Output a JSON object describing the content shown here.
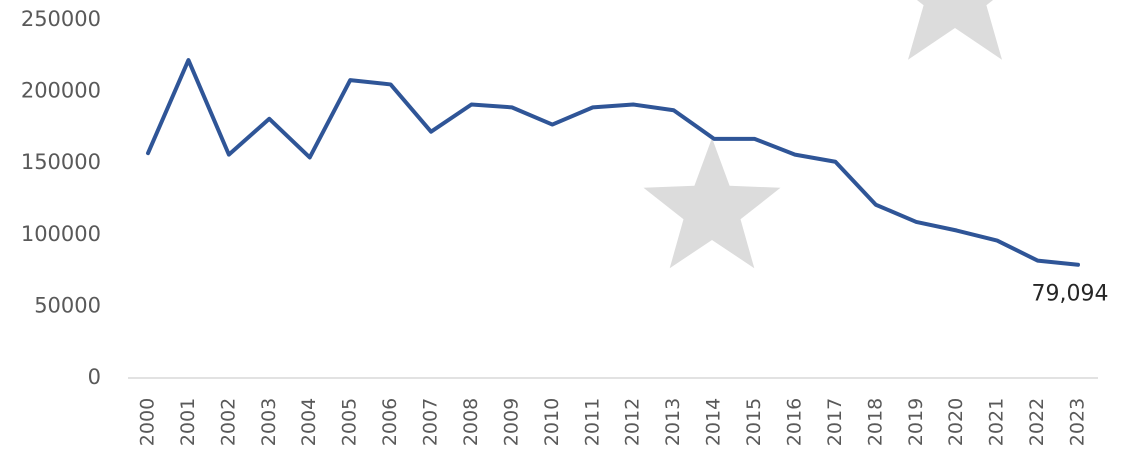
{
  "chart_data": {
    "type": "line",
    "categories": [
      "2000",
      "2001",
      "2002",
      "2003",
      "2004",
      "2005",
      "2006",
      "2007",
      "2008",
      "2009",
      "2010",
      "2011",
      "2012",
      "2013",
      "2014",
      "2015",
      "2016",
      "2017",
      "2018",
      "2019",
      "2020",
      "2021",
      "2022",
      "2023"
    ],
    "series": [
      {
        "color": "#2f5597",
        "values": [
          157000,
          222000,
          156000,
          181000,
          154000,
          208000,
          205000,
          172000,
          191000,
          189000,
          177000,
          189000,
          191000,
          187000,
          167000,
          167000,
          156000,
          151000,
          121000,
          109000,
          103000,
          96000,
          82000,
          79094
        ],
        "value_labels": [
          null,
          null,
          null,
          null,
          null,
          null,
          null,
          null,
          null,
          null,
          null,
          null,
          null,
          null,
          null,
          null,
          null,
          null,
          null,
          null,
          null,
          null,
          null,
          "79,094"
        ]
      }
    ],
    "ylim": [
      0,
      250000
    ],
    "yticks": [
      0,
      50000,
      100000,
      150000,
      200000,
      250000
    ],
    "grid": false
  }
}
